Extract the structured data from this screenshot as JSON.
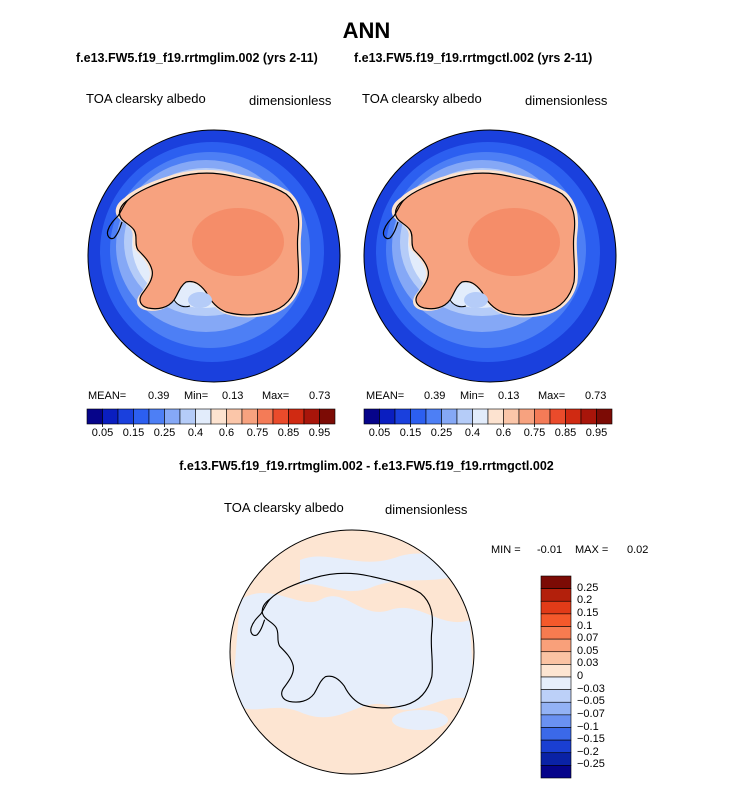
{
  "title": "ANN",
  "panels": [
    {
      "case_title": "f.e13.FW5.f19_f19.rrtmglim.002 (yrs 2-11)",
      "variable": "TOA clearsky albedo",
      "units": "dimensionless",
      "stats": {
        "mean_label": "MEAN=",
        "mean": "0.39",
        "min_label": "Min=",
        "min": "0.13",
        "max_label": "Max=",
        "max": "0.73"
      }
    },
    {
      "case_title": "f.e13.FW5.f19_f19.rrtmgctl.002 (yrs 2-11)",
      "variable": "TOA clearsky albedo",
      "units": "dimensionless",
      "stats": {
        "mean_label": "MEAN=",
        "mean": "0.39",
        "min_label": "Min=",
        "min": "0.13",
        "max_label": "Max=",
        "max": "0.73"
      }
    }
  ],
  "colorbar": {
    "ticks": [
      "0.05",
      "0.15",
      "0.25",
      "0.4",
      "0.6",
      "0.75",
      "0.85",
      "0.95"
    ],
    "colors": [
      "#06048a",
      "#0a1ec0",
      "#1a40dd",
      "#2c5ff0",
      "#4d7ff5",
      "#85a8f6",
      "#b5ccf8",
      "#e2ecfb",
      "#fde3d0",
      "#fbc6a9",
      "#f7a27f",
      "#f47b57",
      "#ea4b2b",
      "#d02a12",
      "#a8150a",
      "#7c0b05"
    ]
  },
  "difference": {
    "title": "f.e13.FW5.f19_f19.rrtmglim.002 - f.e13.FW5.f19_f19.rrtmgctl.002",
    "variable": "TOA clearsky albedo",
    "units": "dimensionless",
    "min_label": "MIN =",
    "min": "-0.01",
    "max_label": "MAX =",
    "max": "0.02",
    "colorbar": {
      "labels": [
        "0.25",
        "0.2",
        "0.15",
        "0.1",
        "0.07",
        "0.05",
        "0.03",
        "0",
        "−0.03",
        "−0.05",
        "−0.07",
        "−0.1",
        "−0.15",
        "−0.2",
        "−0.25"
      ],
      "colors": [
        "#7c0b05",
        "#b3200c",
        "#e13b18",
        "#f4592b",
        "#f77b50",
        "#f9a07a",
        "#fbc3a3",
        "#fde5d2",
        "#e6eefb",
        "#bcd0f8",
        "#93b2f5",
        "#6a91f2",
        "#3b69e9",
        "#1a3fd2",
        "#0a22a6",
        "#06048a"
      ]
    }
  }
}
